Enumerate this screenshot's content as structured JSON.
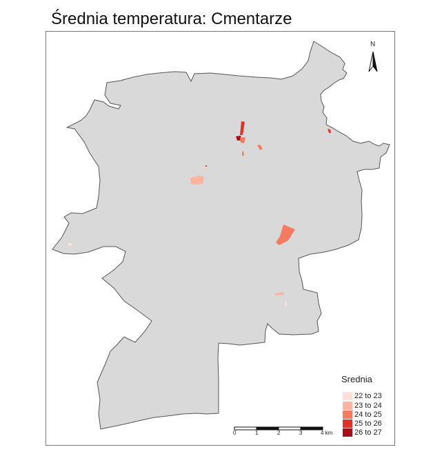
{
  "title": "Średnia temperatura: Cmentarze",
  "north_label": "N",
  "legend": {
    "title": "Srednia",
    "items": [
      {
        "label": "22 to 23",
        "color": "#fde0d6"
      },
      {
        "label": "23 to 24",
        "color": "#fbb4a0"
      },
      {
        "label": "24 to 25",
        "color": "#f57b60"
      },
      {
        "label": "25 to 26",
        "color": "#e0312a"
      },
      {
        "label": "26 to 27",
        "color": "#a50f15"
      }
    ]
  },
  "scale_bar": {
    "labels": [
      "0",
      "1",
      "2",
      "3",
      "4 km"
    ]
  },
  "colors": {
    "land": "#d9d9d9",
    "outline": "#555555"
  }
}
